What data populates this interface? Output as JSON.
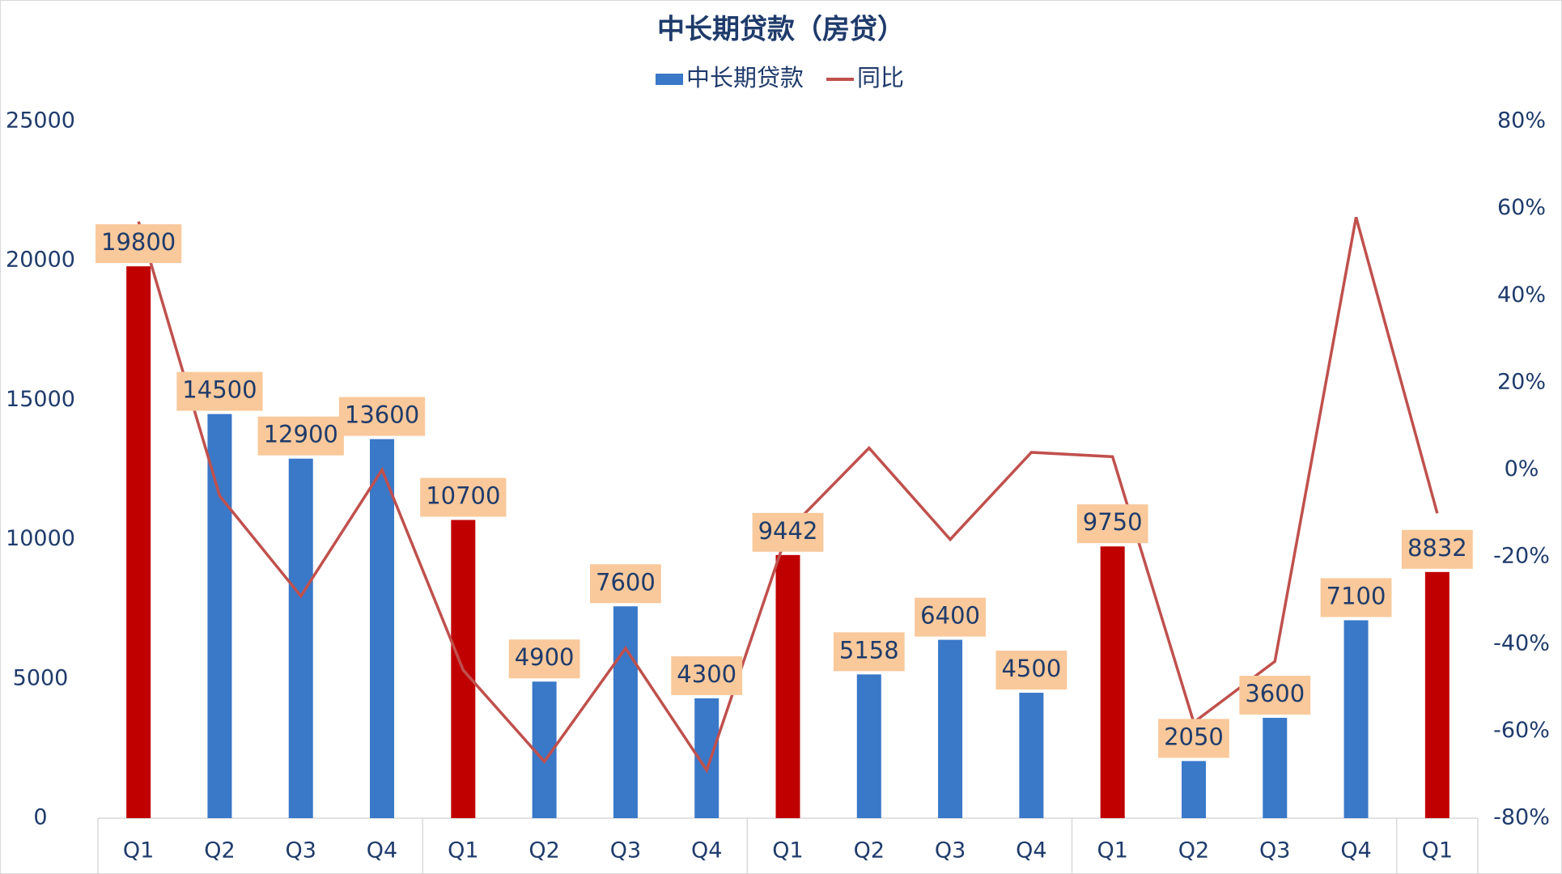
{
  "chart_data": {
    "type": "bar",
    "title": "中长期贷款（房贷）",
    "categories": [
      "Q1",
      "Q2",
      "Q3",
      "Q4",
      "Q1",
      "Q2",
      "Q3",
      "Q4",
      "Q1",
      "Q2",
      "Q3",
      "Q4",
      "Q1",
      "Q2",
      "Q3",
      "Q4",
      "Q1"
    ],
    "series": [
      {
        "name": "中长期贷款",
        "color": "#3a78c8",
        "type": "bar",
        "point_colors": [
          "#c00000",
          "#3a78c8",
          "#3a78c8",
          "#3a78c8",
          "#c00000",
          "#3a78c8",
          "#3a78c8",
          "#3a78c8",
          "#c00000",
          "#3a78c8",
          "#3a78c8",
          "#3a78c8",
          "#c00000",
          "#3a78c8",
          "#3a78c8",
          "#3a78c8",
          "#c00000"
        ],
        "values": [
          19800,
          14500,
          12900,
          13600,
          10700,
          4900,
          7600,
          4300,
          9442,
          5158,
          6400,
          4500,
          9750,
          2050,
          3600,
          7100,
          8832
        ]
      },
      {
        "name": "同比",
        "color": "#c0504d",
        "type": "line",
        "axis": "y2",
        "values": [
          57,
          -6,
          -29,
          0,
          -46,
          -67,
          -41,
          -69,
          -14,
          5,
          -16,
          4,
          3,
          -58,
          -44,
          58,
          -10
        ]
      }
    ],
    "ylim": [
      0,
      25000
    ],
    "yticks": [
      0,
      5000,
      10000,
      15000,
      20000,
      25000
    ],
    "y2lim": [
      -80,
      80
    ],
    "y2ticks": [
      {
        "value": -80,
        "label": "-80%"
      },
      {
        "value": -60,
        "label": "-60%"
      },
      {
        "value": -40,
        "label": "-40%"
      },
      {
        "value": -20,
        "label": "-20%"
      },
      {
        "value": 0,
        "label": "0%"
      },
      {
        "value": 20,
        "label": "20%"
      },
      {
        "value": 40,
        "label": "40%"
      },
      {
        "value": 60,
        "label": "60%"
      },
      {
        "value": 80,
        "label": "80%"
      }
    ],
    "label_box_color": "#f9c99b"
  }
}
